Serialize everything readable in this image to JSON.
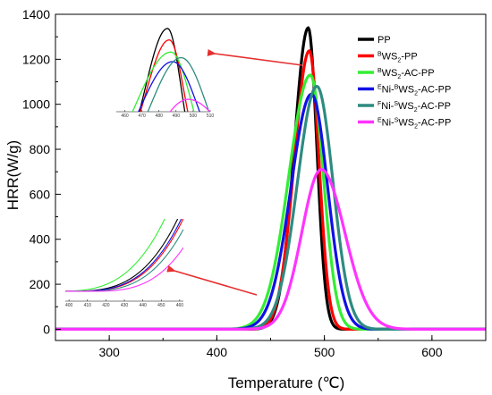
{
  "chart_data": {
    "type": "line",
    "xlabel": "Temperature (℃)",
    "ylabel": "HRR(W/g)",
    "xlim": [
      250,
      650
    ],
    "ylim": [
      -50,
      1400
    ],
    "x_ticks": [
      "300",
      "400",
      "500",
      "600"
    ],
    "y_ticks": [
      "0",
      "200",
      "400",
      "600",
      "800",
      "1000",
      "1200",
      "1400"
    ],
    "legend_position": "top-right",
    "legend": [
      {
        "base": "PP",
        "color": "#000000",
        "parts": [
          {
            "t": "PP",
            "s": "n"
          }
        ]
      },
      {
        "base": "WS2-PP",
        "color": "#ff0000",
        "parts": [
          {
            "t": "B",
            "s": "sup"
          },
          {
            "t": "WS",
            "s": "n"
          },
          {
            "t": "2",
            "s": "sub"
          },
          {
            "t": "-PP",
            "s": "n"
          }
        ]
      },
      {
        "base": "WS2-AC-PP",
        "color": "#33ee33",
        "parts": [
          {
            "t": "B",
            "s": "sup"
          },
          {
            "t": "WS",
            "s": "n"
          },
          {
            "t": "2",
            "s": "sub"
          },
          {
            "t": "-AC-PP",
            "s": "n"
          }
        ]
      },
      {
        "base": "Ni-WS2-AC-PP",
        "color": "#1010e6",
        "parts": [
          {
            "t": "E",
            "s": "sup"
          },
          {
            "t": "Ni-",
            "s": "n"
          },
          {
            "t": "B",
            "s": "sup"
          },
          {
            "t": "WS",
            "s": "n"
          },
          {
            "t": "2",
            "s": "sub"
          },
          {
            "t": "-AC-PP",
            "s": "n"
          }
        ]
      },
      {
        "base": "Ni-WS2-AC-PP",
        "color": "#2e8b80",
        "parts": [
          {
            "t": "F",
            "s": "sup"
          },
          {
            "t": "Ni-",
            "s": "n"
          },
          {
            "t": "S",
            "s": "sup"
          },
          {
            "t": "WS",
            "s": "n"
          },
          {
            "t": "2",
            "s": "sub"
          },
          {
            "t": "-AC-PP",
            "s": "n"
          }
        ]
      },
      {
        "base": "Ni-WS2-AC-PP",
        "color": "#ff33ff",
        "parts": [
          {
            "t": "E",
            "s": "sup"
          },
          {
            "t": "Ni-",
            "s": "n"
          },
          {
            "t": "S",
            "s": "sup"
          },
          {
            "t": "WS",
            "s": "n"
          },
          {
            "t": "2",
            "s": "sub"
          },
          {
            "t": "-AC-PP",
            "s": "n"
          }
        ]
      }
    ],
    "series": [
      {
        "color": "#000000",
        "peak_x": 485,
        "peak_y": 1340,
        "left_w": 13,
        "right_w": 8
      },
      {
        "color": "#ff0000",
        "peak_x": 486,
        "peak_y": 1238,
        "left_w": 14,
        "right_w": 9
      },
      {
        "color": "#33ee33",
        "peak_x": 487,
        "peak_y": 1130,
        "left_w": 20,
        "right_w": 12
      },
      {
        "color": "#1010e6",
        "peak_x": 488,
        "peak_y": 1045,
        "left_w": 19,
        "right_w": 15
      },
      {
        "color": "#2e8b80",
        "peak_x": 493,
        "peak_y": 1080,
        "left_w": 18,
        "right_w": 15
      },
      {
        "color": "#ff33ff",
        "peak_x": 497,
        "peak_y": 710,
        "left_w": 18,
        "right_w": 22
      }
    ],
    "inset_top": {
      "x_ticks": [
        "460",
        "470",
        "480",
        "490",
        "500",
        "510"
      ]
    },
    "inset_bottom": {
      "x_ticks": [
        "400",
        "410",
        "420",
        "430",
        "440",
        "450",
        "460"
      ]
    }
  },
  "colors": {
    "axis": "#000000",
    "arrow": "#e53030"
  }
}
